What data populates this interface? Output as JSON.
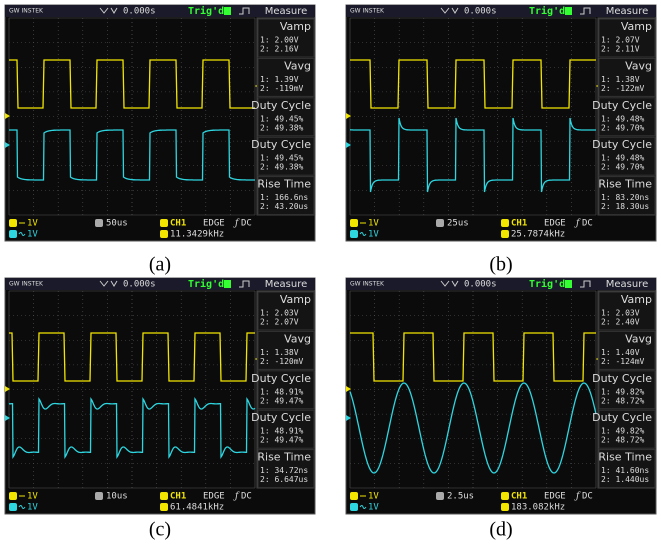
{
  "panels": [
    {
      "caption": "(a)",
      "header": {
        "brand": "GW INSTEK",
        "time": "0.000s",
        "trigger": "Trig'd",
        "menu": "Measure"
      },
      "measures": [
        {
          "name": "Vamp",
          "lines": [
            "1: 2.00V",
            "2: 2.16V"
          ]
        },
        {
          "name": "Vavg",
          "lines": [
            "1: 1.39V",
            "2: -119mV"
          ]
        },
        {
          "name": "Duty Cycle",
          "lines": [
            "1: 49.45%",
            "2: 49.38%"
          ]
        },
        {
          "name": "Duty Cycle",
          "lines": [
            "1: 49.45%",
            "2: 49.38%"
          ]
        },
        {
          "name": "Rise Time",
          "lines": [
            "1: 166.6ns",
            "2: 43.20us"
          ]
        }
      ],
      "footer": {
        "ch1_scale": "1V",
        "ch2_scale": "1V",
        "timebase": "50us",
        "source": "CH1",
        "trigger_type": "EDGE",
        "coupling": "DC",
        "frequency": "11.3429kHz"
      }
    },
    {
      "caption": "(b)",
      "header": {
        "brand": "GW INSTEK",
        "time": "0.000s",
        "trigger": "Trig'd",
        "menu": "Measure"
      },
      "measures": [
        {
          "name": "Vamp",
          "lines": [
            "1: 2.07V",
            "2: 2.11V"
          ]
        },
        {
          "name": "Vavg",
          "lines": [
            "1: 1.38V",
            "2: -122mV"
          ]
        },
        {
          "name": "Duty Cycle",
          "lines": [
            "1: 49.48%",
            "2: 49.70%"
          ]
        },
        {
          "name": "Duty Cycle",
          "lines": [
            "1: 49.48%",
            "2: 49.70%"
          ]
        },
        {
          "name": "Rise Time",
          "lines": [
            "1: 83.20ns",
            "2: 18.30us"
          ]
        }
      ],
      "footer": {
        "ch1_scale": "1V",
        "ch2_scale": "1V",
        "timebase": "25us",
        "source": "CH1",
        "trigger_type": "EDGE",
        "coupling": "DC",
        "frequency": "25.7874kHz"
      }
    },
    {
      "caption": "(c)",
      "header": {
        "brand": "GW INSTEK",
        "time": "0.000s",
        "trigger": "Trig'd",
        "menu": "Measure"
      },
      "measures": [
        {
          "name": "Vamp",
          "lines": [
            "1: 2.03V",
            "2: 2.07V"
          ]
        },
        {
          "name": "Vavg",
          "lines": [
            "1: 1.38V",
            "2: -120mV"
          ]
        },
        {
          "name": "Duty Cycle",
          "lines": [
            "1: 48.91%",
            "2: 49.47%"
          ]
        },
        {
          "name": "Duty Cycle",
          "lines": [
            "1: 48.91%",
            "2: 49.47%"
          ]
        },
        {
          "name": "Rise Time",
          "lines": [
            "1: 34.72ns",
            "2: 6.647us"
          ]
        }
      ],
      "footer": {
        "ch1_scale": "1V",
        "ch2_scale": "1V",
        "timebase": "10us",
        "source": "CH1",
        "trigger_type": "EDGE",
        "coupling": "DC",
        "frequency": "61.4841kHz"
      }
    },
    {
      "caption": "(d)",
      "header": {
        "brand": "GW INSTEK",
        "time": "0.000s",
        "trigger": "Trig'd",
        "menu": "Measure"
      },
      "measures": [
        {
          "name": "Vamp",
          "lines": [
            "1: 2.03V",
            "2: 2.40V"
          ]
        },
        {
          "name": "Vavg",
          "lines": [
            "1: 1.40V",
            "2: -124mV"
          ]
        },
        {
          "name": "Duty Cycle",
          "lines": [
            "1: 49.82%",
            "2: 48.72%"
          ]
        },
        {
          "name": "Duty Cycle",
          "lines": [
            "1: 49.82%",
            "2: 48.72%"
          ]
        },
        {
          "name": "Rise Time",
          "lines": [
            "1: 41.60ns",
            "2: 1.440us"
          ]
        }
      ],
      "footer": {
        "ch1_scale": "1V",
        "ch2_scale": "1V",
        "timebase": "2.5us",
        "source": "CH1",
        "trigger_type": "EDGE",
        "coupling": "DC",
        "frequency": "183.082kHz"
      }
    }
  ]
}
